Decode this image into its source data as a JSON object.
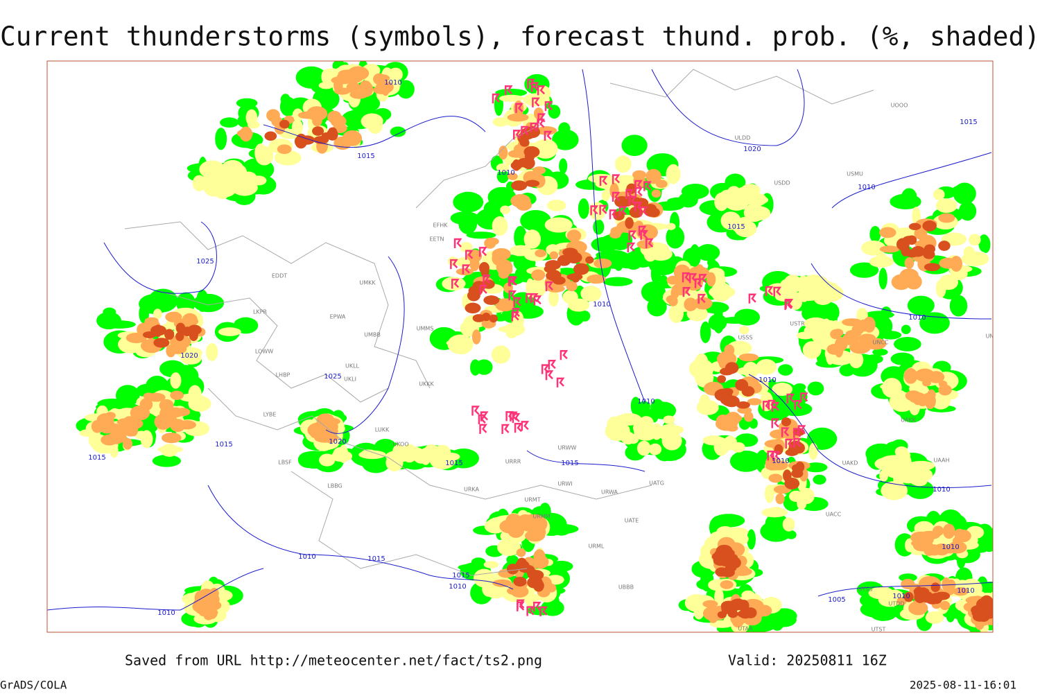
{
  "title": "Current thunderstorms (symbols), forecast thund. prob. (%, shaded)",
  "footer": {
    "source": "Saved from URL http://meteocenter.net/fact/ts2.png",
    "valid": "Valid: 20250811 16Z",
    "software": "GrADS/COLA",
    "timestamp": "2025-08-11-16:01"
  },
  "map": {
    "isobar_labels": [
      "1010",
      "1015",
      "1020",
      "1015",
      "1010",
      "1010",
      "1015",
      "1025",
      "1010",
      "1020",
      "1025",
      "1010",
      "1010",
      "1010",
      "1020",
      "1015",
      "1015",
      "1015",
      "1015",
      "1010",
      "1010",
      "1010",
      "1010",
      "1015",
      "1015",
      "1010",
      "1010",
      "1005",
      "1010",
      "1010"
    ],
    "station_labels": [
      "EDDT",
      "LKPR",
      "EPWA",
      "UMKK",
      "UMBB",
      "LOWW",
      "LHBP",
      "UKLL",
      "UKLI",
      "UKKK",
      "LYBE",
      "LUKK",
      "UKOO",
      "LBSF",
      "LBBG",
      "EFHK",
      "EETN",
      "UMMS",
      "URRR",
      "URKA",
      "URMT",
      "URMM",
      "URWW",
      "URWI",
      "UATG",
      "URWA",
      "UATE",
      "URML",
      "UBBB",
      "ULDD",
      "USDD",
      "USMU",
      "UOOO",
      "USTR",
      "USSS",
      "UNCC",
      "UNBB",
      "UAKK",
      "UAKD",
      "UAAH",
      "UACC",
      "UTSS",
      "UTDD",
      "UTST",
      "UTAA"
    ]
  }
}
